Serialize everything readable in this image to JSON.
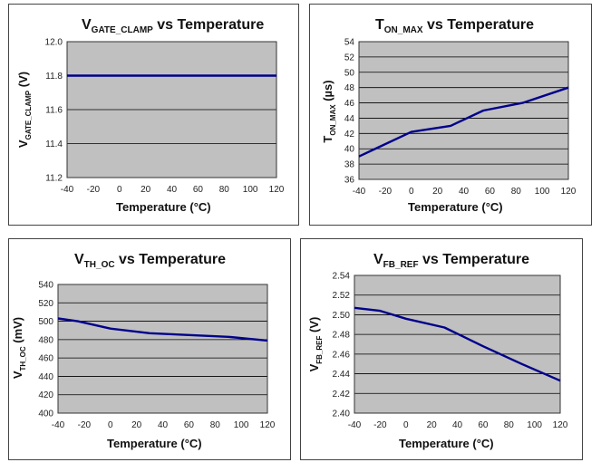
{
  "chart_data": [
    {
      "type": "line",
      "title": {
        "main": "V",
        "sub": "GATE_CLAMP",
        "rest": " vs Temperature"
      },
      "xlabel": "Temperature    (°C)",
      "ylabel": {
        "main": "V",
        "sub": "GATE_CLAMP",
        "rest": " (V)"
      },
      "xlim": [
        -40,
        120
      ],
      "ylim": [
        11.2,
        12.0
      ],
      "xticks": [
        "-40",
        "-20",
        "0",
        "20",
        "40",
        "60",
        "80",
        "100",
        "120"
      ],
      "yticks": [
        "11.2",
        "11.4",
        "11.6",
        "11.8",
        "12.0"
      ],
      "x": [
        -40,
        120
      ],
      "y": [
        11.8,
        11.8
      ],
      "grid": true
    },
    {
      "type": "line",
      "title": {
        "main": "T",
        "sub": "ON_MAX",
        "rest": " vs Temperature"
      },
      "xlabel": "Temperature    (°C)",
      "ylabel": {
        "main": "T",
        "sub": "ON_MAX",
        "rest": " (µs)"
      },
      "xlim": [
        -40,
        120
      ],
      "ylim": [
        36,
        54
      ],
      "xticks": [
        "-40",
        "-20",
        "0",
        "20",
        "40",
        "60",
        "80",
        "100",
        "120"
      ],
      "yticks": [
        "36",
        "38",
        "40",
        "42",
        "44",
        "46",
        "48",
        "50",
        "52",
        "54"
      ],
      "x": [
        -40,
        -25,
        0,
        30,
        55,
        85,
        120
      ],
      "y": [
        39,
        40.2,
        42.2,
        43,
        45,
        46,
        48
      ],
      "grid": true
    },
    {
      "type": "line",
      "title": {
        "main": "V",
        "sub": "TH_OC",
        "rest": " vs Temperature"
      },
      "xlabel": "Temperature (°C)",
      "ylabel": {
        "main": "V",
        "sub": "TH_OC",
        "rest": " (mV)"
      },
      "xlim": [
        -40,
        120
      ],
      "ylim": [
        400,
        540
      ],
      "xticks": [
        "-40",
        "-20",
        "0",
        "20",
        "40",
        "60",
        "80",
        "100",
        "120"
      ],
      "yticks": [
        "400",
        "420",
        "440",
        "460",
        "480",
        "500",
        "520",
        "540"
      ],
      "x": [
        -40,
        -25,
        0,
        30,
        60,
        90,
        120
      ],
      "y": [
        503,
        500,
        492,
        487,
        485,
        483,
        479
      ],
      "grid": true
    },
    {
      "type": "line",
      "title": {
        "main": "V",
        "sub": "FB_REF",
        "rest": " vs Temperature"
      },
      "xlabel": "Temperature (°C)",
      "ylabel": {
        "main": "V",
        "sub": "FB_REF",
        "rest": " (V)"
      },
      "xlim": [
        -40,
        120
      ],
      "ylim": [
        2.4,
        2.54
      ],
      "xticks": [
        "-40",
        "-20",
        "0",
        "20",
        "40",
        "60",
        "80",
        "100",
        "120"
      ],
      "yticks": [
        "2.40",
        "2.42",
        "2.44",
        "2.46",
        "2.48",
        "2.50",
        "2.52",
        "2.54"
      ],
      "x": [
        -40,
        -20,
        0,
        30,
        60,
        90,
        120
      ],
      "y": [
        2.507,
        2.504,
        2.496,
        2.487,
        2.468,
        2.45,
        2.433
      ],
      "grid": true
    }
  ]
}
